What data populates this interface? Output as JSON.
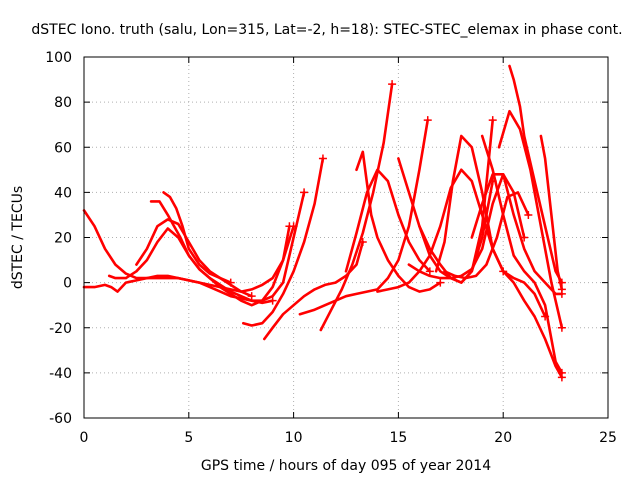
{
  "chart_data": {
    "type": "scatter",
    "title": "dSTEC Iono. truth (salu, Lon=315, Lat=-2, h=18): STEC-STEC_elemax in phase cont.",
    "xlabel": "GPS time / hours of day 095 of year 2014",
    "ylabel": "dSTEC  / TECUs",
    "xlim": [
      0,
      25
    ],
    "ylim": [
      -60,
      100
    ],
    "xticks": [
      0,
      5,
      10,
      15,
      20,
      25
    ],
    "yticks": [
      -60,
      -40,
      -20,
      0,
      20,
      40,
      60,
      80,
      100
    ],
    "grid": true,
    "marker": "plus",
    "color": "#ff0000",
    "series": [
      {
        "x": [
          0.0,
          0.5,
          1.0,
          1.5,
          2.0,
          2.5,
          3.0,
          3.5,
          4.0,
          4.5,
          5.0,
          5.5,
          6.0,
          6.5,
          7.0,
          7.5,
          8.0,
          8.5,
          9.0,
          9.5,
          9.8
        ],
        "y": [
          32,
          25,
          15,
          8,
          4,
          2,
          2,
          2,
          2,
          2,
          1,
          0,
          -1,
          -2,
          -3,
          -4,
          -3,
          -1,
          2,
          10,
          25
        ]
      },
      {
        "x": [
          0.0,
          0.5,
          1.0,
          1.3,
          1.6,
          2.0,
          2.5,
          3.0,
          3.5,
          4.0,
          4.5,
          5.0,
          5.5,
          6.0,
          6.5,
          7.0,
          7.5,
          8.0,
          8.5,
          9.0,
          9.5,
          10.0,
          10.5
        ],
        "y": [
          -2,
          -2,
          -1,
          -2,
          -4,
          0,
          1,
          2,
          3,
          3,
          2,
          1,
          0,
          -2,
          -4,
          -6,
          -7,
          -8,
          -8,
          -6,
          0,
          20,
          40
        ]
      },
      {
        "x": [
          1.2,
          1.5,
          2.0,
          2.5,
          3.0,
          3.5,
          4.0,
          4.5,
          5.0,
          5.5,
          6.0,
          6.5,
          7.0,
          7.5,
          8.0,
          8.5,
          9.0
        ],
        "y": [
          3,
          2,
          2,
          5,
          10,
          18,
          24,
          20,
          12,
          6,
          2,
          -1,
          -4,
          -6,
          -8,
          -9,
          -8
        ]
      },
      {
        "x": [
          2.5,
          3.0,
          3.5,
          4.0,
          4.5,
          5.0,
          5.5,
          6.0,
          6.5,
          7.0,
          7.5,
          8.0
        ],
        "y": [
          8,
          15,
          25,
          28,
          26,
          18,
          10,
          5,
          2,
          -1,
          -4,
          -6
        ]
      },
      {
        "x": [
          3.2,
          3.6,
          4.0,
          4.3,
          4.6,
          5.0,
          5.5,
          6.0,
          6.5,
          7.0,
          7.5,
          8.0,
          8.5,
          9.0,
          9.5,
          10.0
        ],
        "y": [
          36,
          36,
          30,
          25,
          20,
          12,
          6,
          2,
          -2,
          -5,
          -8,
          -10,
          -8,
          -2,
          10,
          25
        ]
      },
      {
        "x": [
          3.8,
          4.1,
          4.4,
          4.7,
          5.0,
          5.5,
          6.0,
          6.5,
          7.0
        ],
        "y": [
          40,
          38,
          33,
          25,
          15,
          8,
          4,
          2,
          0
        ]
      },
      {
        "x": [
          7.6,
          8.0,
          8.5,
          9.0,
          9.5,
          10.0,
          10.5,
          11.0,
          11.4
        ],
        "y": [
          -18,
          -19,
          -18,
          -13,
          -5,
          5,
          18,
          35,
          55
        ]
      },
      {
        "x": [
          8.6,
          9.0,
          9.5,
          10.0,
          10.5,
          11.0,
          11.5,
          12.0,
          12.5,
          13.0,
          13.3
        ],
        "y": [
          -25,
          -20,
          -14,
          -10,
          -6,
          -3,
          -1,
          0,
          3,
          8,
          18
        ]
      },
      {
        "x": [
          10.3,
          11.0,
          11.5,
          12.0,
          12.5,
          13.0,
          13.5,
          14.0,
          14.5,
          15.0,
          15.5,
          16.0,
          16.4
        ],
        "y": [
          -14,
          -12,
          -10,
          -8,
          -6,
          -5,
          -4,
          -3,
          2,
          10,
          25,
          50,
          72
        ]
      },
      {
        "x": [
          11.3,
          11.8,
          12.3,
          12.8,
          13.3,
          13.8,
          14.3,
          14.7
        ],
        "y": [
          -21,
          -12,
          -3,
          8,
          22,
          40,
          62,
          88
        ]
      },
      {
        "x": [
          12.5,
          13.0,
          13.5,
          14.0,
          14.5,
          15.0,
          15.5,
          16.0,
          16.5
        ],
        "y": [
          5,
          22,
          40,
          50,
          45,
          30,
          18,
          10,
          5
        ]
      },
      {
        "x": [
          13.0,
          13.3,
          13.7,
          14.0,
          14.5,
          15.0,
          15.5,
          16.0,
          16.5,
          17.0
        ],
        "y": [
          50,
          58,
          30,
          20,
          10,
          3,
          -2,
          -4,
          -3,
          0
        ]
      },
      {
        "x": [
          14.0,
          14.5,
          15.0,
          15.5,
          16.0,
          16.5,
          17.0,
          17.5,
          18.0,
          18.5,
          19.0,
          19.5,
          20.0
        ],
        "y": [
          -4,
          -3,
          -2,
          0,
          5,
          12,
          25,
          42,
          50,
          45,
          30,
          15,
          5
        ]
      },
      {
        "x": [
          15.5,
          16.0,
          16.5,
          17.0,
          17.5,
          18.0,
          18.5,
          19.0,
          19.5,
          20.0,
          20.5,
          21.0
        ],
        "y": [
          8,
          5,
          3,
          2,
          2,
          3,
          6,
          15,
          35,
          48,
          40,
          20
        ]
      },
      {
        "x": [
          15.0,
          15.5,
          16.0,
          16.5,
          17.0,
          17.5,
          18.0,
          18.5,
          19.0,
          19.5
        ],
        "y": [
          55,
          40,
          25,
          12,
          5,
          2,
          0,
          5,
          20,
          45
        ]
      },
      {
        "x": [
          16.0,
          16.5,
          17.0,
          17.5,
          18.0,
          18.5,
          19.0,
          19.5
        ],
        "y": [
          25,
          15,
          8,
          2,
          0,
          5,
          25,
          72
        ]
      },
      {
        "x": [
          16.8,
          17.2,
          17.6,
          18.0,
          18.5,
          19.0,
          19.5,
          20.0,
          20.5,
          21.0,
          21.5,
          22.0
        ],
        "y": [
          5,
          18,
          45,
          65,
          60,
          40,
          15,
          5,
          2,
          0,
          -5,
          -15
        ]
      },
      {
        "x": [
          17.2,
          17.7,
          18.2,
          18.7,
          19.2,
          19.7,
          20.2,
          20.7,
          21.2
        ],
        "y": [
          5,
          3,
          2,
          3,
          8,
          20,
          38,
          40,
          30
        ]
      },
      {
        "x": [
          18.5,
          19.0,
          19.5,
          20.0,
          20.5,
          21.0,
          21.5,
          22.0,
          22.5,
          22.8
        ],
        "y": [
          20,
          35,
          48,
          48,
          30,
          15,
          5,
          0,
          -5,
          -5
        ]
      },
      {
        "x": [
          19.0,
          19.5,
          20.0,
          20.5,
          21.0,
          21.5,
          22.0,
          22.5,
          22.8
        ],
        "y": [
          65,
          50,
          30,
          12,
          5,
          0,
          -10,
          -35,
          -40
        ]
      },
      {
        "x": [
          19.8,
          20.3,
          20.8,
          21.3,
          21.8,
          22.3,
          22.8
        ],
        "y": [
          60,
          76,
          68,
          50,
          25,
          0,
          -20
        ]
      },
      {
        "x": [
          20.0,
          20.5,
          21.0,
          21.5,
          22.0,
          22.5,
          22.8
        ],
        "y": [
          5,
          0,
          -8,
          -15,
          -25,
          -37,
          -42
        ]
      },
      {
        "x": [
          20.3,
          20.5,
          20.8,
          21.0,
          21.5,
          22.0,
          22.5,
          22.8
        ],
        "y": [
          96,
          90,
          78,
          65,
          45,
          25,
          5,
          0
        ]
      },
      {
        "x": [
          21.8,
          22.0,
          22.3,
          22.6,
          22.8
        ],
        "y": [
          65,
          55,
          30,
          5,
          -3
        ]
      }
    ]
  }
}
